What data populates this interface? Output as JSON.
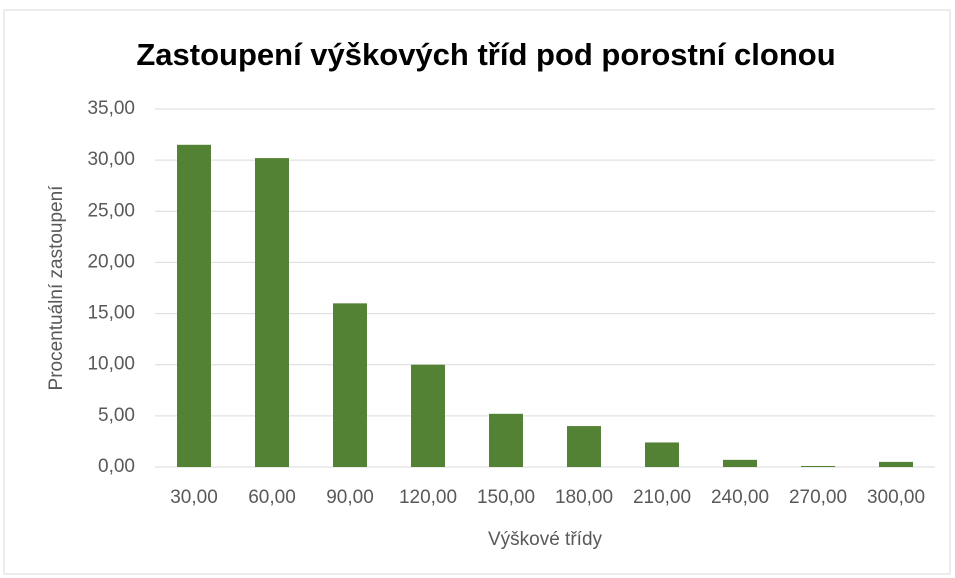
{
  "chart_data": {
    "type": "bar",
    "title": "Zastoupení výškových tříd pod porostní clonou",
    "x_label": "Výškové třídy",
    "y_label": "Procentuální zastoupení",
    "categories": [
      "30,00",
      "60,00",
      "90,00",
      "120,00",
      "150,00",
      "180,00",
      "210,00",
      "240,00",
      "270,00",
      "300,00"
    ],
    "values": [
      31.5,
      30.2,
      16.0,
      10.0,
      5.2,
      4.0,
      2.4,
      0.7,
      0.1,
      0.5
    ],
    "color": "#548235",
    "ylim": [
      0,
      35
    ],
    "yticks": [
      {
        "value": 0,
        "label": "0,00"
      },
      {
        "value": 5,
        "label": "5,00"
      },
      {
        "value": 10,
        "label": "10,00"
      },
      {
        "value": 15,
        "label": "15,00"
      },
      {
        "value": 20,
        "label": "20,00"
      },
      {
        "value": 25,
        "label": "25,00"
      },
      {
        "value": 30,
        "label": "30,00"
      },
      {
        "value": 35,
        "label": "35,00"
      }
    ],
    "grid": true
  }
}
